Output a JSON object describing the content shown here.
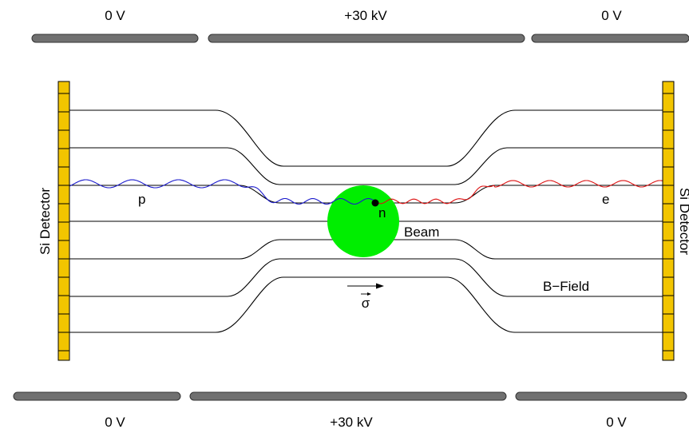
{
  "electrodes": {
    "top": [
      "0 V",
      "+30 kV",
      "0 V"
    ],
    "bottom": [
      "0 V",
      "+30 kV",
      "0 V"
    ]
  },
  "detectors": {
    "left_label": "Si Detector",
    "right_label": "Si Detector"
  },
  "labels": {
    "proton": "p",
    "electron": "e",
    "neutron": "n",
    "beam": "Beam",
    "b_field": "B−Field",
    "polarization": "σ"
  },
  "colors": {
    "detector": "#f2c500",
    "beam": "#00ee00",
    "proton_track": "#1a1acc",
    "electron_track": "#dd1111",
    "electrode": "#707070"
  },
  "icons": {
    "polarization_arrow": "right-arrow-icon"
  }
}
